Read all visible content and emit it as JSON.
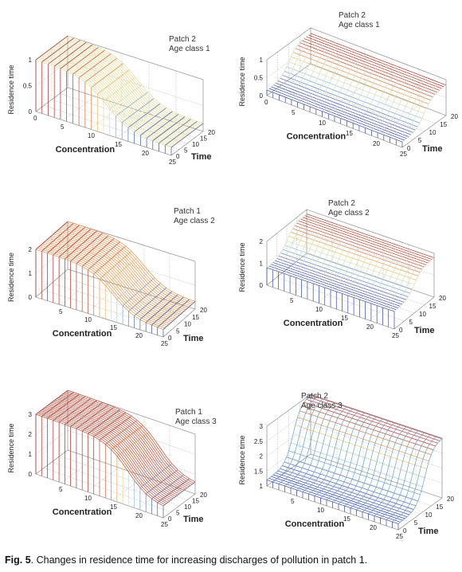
{
  "figure": {
    "caption_label": "Fig. 5",
    "caption_text": ". Changes in residence time for increasing discharges of pollution in patch 1."
  },
  "chart_data": [
    {
      "type": "surface",
      "title_lines": [
        "Patch 2",
        "Age class 1"
      ],
      "xlabel": "Concentration",
      "ylabel": "Time",
      "zlabel": "Residence time",
      "xlim": [
        0,
        25
      ],
      "ylim": [
        0,
        20
      ],
      "zlim": [
        0,
        1
      ],
      "xticks": [
        "0",
        "5",
        "10",
        "15",
        "20",
        "25"
      ],
      "yticks": [
        "0",
        "5",
        "10",
        "15",
        "20"
      ],
      "zticks": [
        "0",
        "0.5",
        "1"
      ],
      "surface": {
        "shape": "sigmoid_drop_in_concentration",
        "z_high": 1.0,
        "z_low": 0.15,
        "transition_concentration": 13
      }
    },
    {
      "type": "surface",
      "title_lines": [
        "Patch 2",
        "Age class 1"
      ],
      "xlabel": "Concentration",
      "ylabel": "Time",
      "zlabel": "Residence time",
      "xlim": [
        0,
        25
      ],
      "ylim": [
        0,
        20
      ],
      "zlim": [
        0,
        1
      ],
      "xticks": [
        "0",
        "5",
        "10",
        "15",
        "20",
        "25"
      ],
      "yticks": [
        "0",
        "5",
        "10",
        "15",
        "20"
      ],
      "zticks": [
        "0",
        "0.5",
        "1"
      ],
      "surface": {
        "shape": "rise_in_time",
        "z_low": 0.15,
        "z_high": 0.85,
        "transition_time": 10
      }
    },
    {
      "type": "surface",
      "title_lines": [
        "Patch 1",
        "Age class 2"
      ],
      "xlabel": "Concentration",
      "ylabel": "Time",
      "zlabel": "Residence time",
      "xlim": [
        0,
        25
      ],
      "ylim": [
        0,
        20
      ],
      "zlim": [
        0,
        2
      ],
      "xticks": [
        "5",
        "10",
        "15",
        "20",
        "25"
      ],
      "yticks": [
        "0",
        "5",
        "10",
        "15",
        "20"
      ],
      "zticks": [
        "0",
        "1",
        "2"
      ],
      "surface": {
        "shape": "sigmoid_drop_in_concentration",
        "z_high": 2.0,
        "z_low": 0.3,
        "transition_concentration": 15
      }
    },
    {
      "type": "surface",
      "title_lines": [
        "Patch 2",
        "Age class 2"
      ],
      "xlabel": "Concentration",
      "ylabel": "Time",
      "zlabel": "Residence time",
      "xlim": [
        0,
        25
      ],
      "ylim": [
        0,
        20
      ],
      "zlim": [
        0,
        2
      ],
      "xticks": [
        "5",
        "10",
        "15",
        "20",
        "25"
      ],
      "yticks": [
        "0",
        "5",
        "10",
        "15",
        "20"
      ],
      "zticks": [
        "0",
        "1",
        "2"
      ],
      "surface": {
        "shape": "rise_in_time",
        "z_low": 0.8,
        "z_high": 1.8,
        "transition_time": 10
      }
    },
    {
      "type": "surface",
      "title_lines": [
        "Patch 1",
        "Age class 3"
      ],
      "xlabel": "Concentration",
      "ylabel": "Time",
      "zlabel": "Residence time",
      "xlim": [
        0,
        25
      ],
      "ylim": [
        0,
        20
      ],
      "zlim": [
        0,
        3
      ],
      "xticks": [
        "5",
        "10",
        "15",
        "20",
        "25"
      ],
      "yticks": [
        "0",
        "5",
        "10",
        "15",
        "20"
      ],
      "zticks": [
        "0",
        "1",
        "2",
        "3"
      ],
      "surface": {
        "shape": "sigmoid_drop_in_concentration",
        "z_high": 3.0,
        "z_low": 0.5,
        "transition_concentration": 18
      }
    },
    {
      "type": "surface",
      "title_lines": [
        "Patch 2",
        "Age class 3"
      ],
      "xlabel": "Concentration",
      "ylabel": "Time",
      "zlabel": "Residence time",
      "xlim": [
        0,
        25
      ],
      "ylim": [
        0,
        20
      ],
      "zlim": [
        1,
        3
      ],
      "xticks": [
        "5",
        "10",
        "15",
        "20",
        "25"
      ],
      "yticks": [
        "0",
        "5",
        "10",
        "15",
        "20"
      ],
      "zticks": [
        "1",
        "1.5",
        "2",
        "2.5",
        "3"
      ],
      "surface": {
        "shape": "rise_in_time",
        "z_low": 1.2,
        "z_high": 3.0,
        "transition_time": 12
      }
    }
  ]
}
